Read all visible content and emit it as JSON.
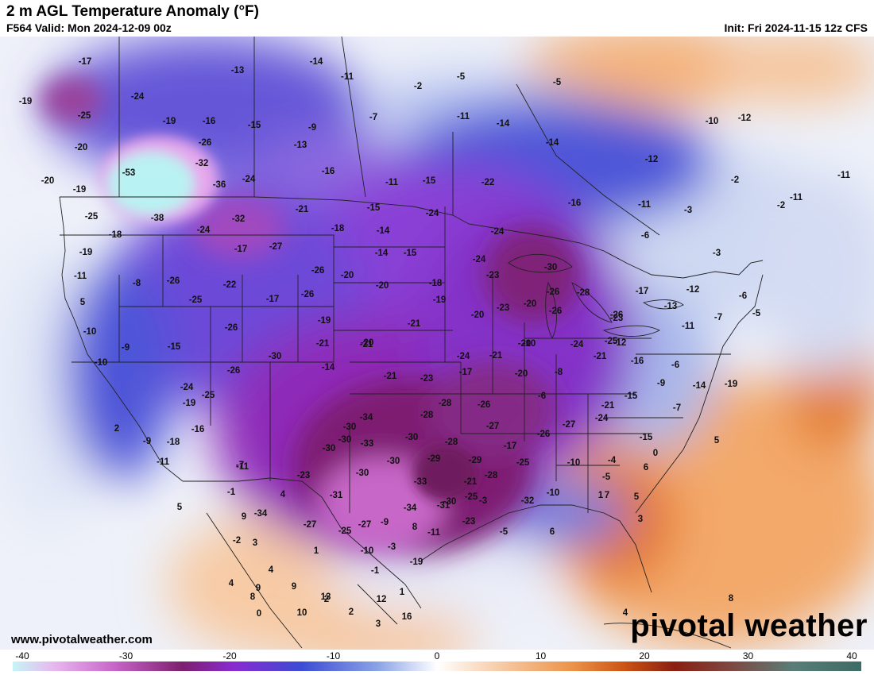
{
  "header": {
    "title": "2 m AGL Temperature Anomaly (°F)",
    "valid": "F564 Valid: Mon 2024-12-09 00z",
    "init": "Init: Fri 2024-11-15 12z CFS"
  },
  "footer": {
    "site": "www.pivotalweather.com",
    "brand": "pivotal weather"
  },
  "colorbar": {
    "ticks": [
      "-40",
      "-30",
      "-20",
      "-10",
      "0",
      "10",
      "20",
      "30",
      "40"
    ]
  },
  "colors": {
    "extreme_cold": "#b8f0f0",
    "very_cold": "#d58ee6",
    "deep_purple": "#7a1f6b",
    "purple": "#8a30d0",
    "blue": "#3d4fd6",
    "light_blue": "#9fb4ea",
    "near_zero": "#f4f6fb",
    "warm": "#f6b07a",
    "hot": "#d8661a"
  },
  "anomaly_labels": [
    "-17",
    "-14",
    "-13",
    "-11",
    "-5",
    "-2",
    "-5",
    "-19",
    "-24",
    "-25",
    "-19",
    "-16",
    "-15",
    "-9",
    "-13",
    "-7",
    "-11",
    "-14",
    "-14",
    "-10",
    "-12",
    "-20",
    "-53",
    "-26",
    "-32",
    "-36",
    "-24",
    "-16",
    "-11",
    "-15",
    "-22",
    "-12",
    "-2",
    "-11",
    "-19",
    "-20",
    "-38",
    "-25",
    "-24",
    "-32",
    "-21",
    "-15",
    "-14",
    "-24",
    "-16",
    "-11",
    "-3",
    "-18",
    "-27",
    "-17",
    "-18",
    "-14",
    "-15",
    "-24",
    "-6",
    "-3",
    "-2",
    "-19",
    "-11",
    "-26",
    "-22",
    "-26",
    "-20",
    "-18",
    "-23",
    "-30",
    "-24",
    "-8",
    "-25",
    "-17",
    "-26",
    "-20",
    "-19",
    "-21",
    "-28",
    "-26",
    "-17",
    "-12",
    "-6",
    "-10",
    "-26",
    "-19",
    "-21",
    "-20",
    "-23",
    "-20",
    "-26",
    "-13",
    "-11",
    "-7",
    "-5",
    "-9",
    "-15",
    "-30",
    "-21",
    "-20",
    "-14",
    "-21",
    "-23",
    "-24",
    "-21",
    "-17",
    "-10",
    "-24",
    "-25",
    "-26",
    "-23",
    "-20",
    "-20",
    "-8",
    "-21",
    "-12",
    "-16",
    "-6",
    "-14",
    "-19",
    "-26",
    "-24",
    "-25",
    "-10",
    "-19",
    "-34",
    "-28",
    "-28",
    "-15",
    "-21",
    "-7",
    "-9",
    "-16",
    "-26",
    "-27",
    "-26",
    "-6",
    "-30",
    "-30",
    "-30",
    "-28",
    "-27",
    "-24",
    "-11",
    "-18",
    "-30",
    "-33",
    "-30",
    "-29",
    "-29",
    "-17",
    "-10",
    "-4",
    "-15",
    "-9",
    "-30",
    "-28",
    "-25",
    "-5",
    "-11",
    "-7",
    "-23",
    "-31",
    "-33",
    "-30",
    "-21",
    "-10",
    "-1",
    "-34",
    "-27",
    "-25",
    "-3",
    "-32",
    "-11",
    "-9",
    "-31",
    "-34",
    "-23",
    "-5",
    "-27",
    "-25",
    "-3",
    "-19",
    "-2",
    "-10",
    "-1",
    "-11",
    "1",
    "8",
    "12",
    "9",
    "16",
    "13",
    "9",
    "5",
    "5",
    "0",
    "6",
    "7",
    "5",
    "3",
    "1",
    "6",
    "3",
    "1",
    "9",
    "4",
    "2",
    "4",
    "4",
    "8",
    "0",
    "10",
    "2",
    "2",
    "5",
    "3",
    "8",
    "4"
  ]
}
